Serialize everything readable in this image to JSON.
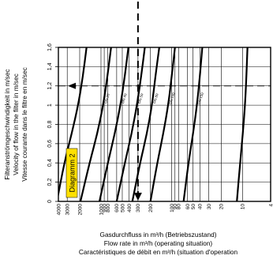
{
  "chart_data": {
    "type": "line",
    "title": "",
    "badge": "Diagramm 2",
    "ylabel_lines": [
      "Filteranströmgeschwindigkeit in m/sec",
      "Velocity of flow in the filter in m/sec",
      "Vitesse courante dans le filtre en m/sec"
    ],
    "xlabel_lines": [
      "Gasdurchfluss in m³/h (Betriebszustand)",
      "Flow rate in m³/h (operating situation)",
      "Caractéristiques de débit en m³/h (situation d'operation"
    ],
    "y_ticks": [
      "0",
      "0,2",
      "0,4",
      "0,6",
      "0,8",
      "1",
      "1,2",
      "1,4",
      "1,6"
    ],
    "ylim": [
      0,
      1.6
    ],
    "x_ticks": [
      "4000",
      "3000",
      "2000",
      "1000",
      "900",
      "800",
      "600",
      "500",
      "400",
      "300",
      "200",
      "100",
      "90",
      "80",
      "60",
      "50",
      "40",
      "30",
      "20",
      "10",
      "4"
    ],
    "x_scale": "log, reversed",
    "reference_velocity": 1.2,
    "reference_flow": "300",
    "curve_labels": [
      "",
      "DN 150",
      "DN 100",
      "DN 80",
      "DN 50",
      "DN 40",
      "DN 25",
      ""
    ],
    "series": [
      {
        "points": [
          [
            8.5,
            1.6
          ],
          [
            8.8,
            1.3
          ],
          [
            9.2,
            1.0
          ],
          [
            9.9,
            0.7
          ],
          [
            10.8,
            0.4
          ],
          [
            12.0,
            0.0
          ]
        ]
      },
      {
        "points": [
          [
            37,
            1.6
          ],
          [
            40,
            1.3
          ],
          [
            44,
            1.0
          ],
          [
            50,
            0.7
          ],
          [
            58,
            0.4
          ],
          [
            68,
            0.0
          ]
        ]
      },
      {
        "points": [
          [
            90,
            1.6
          ],
          [
            100,
            1.3
          ],
          [
            112,
            1.0
          ],
          [
            132,
            0.7
          ],
          [
            160,
            0.4
          ],
          [
            200,
            0.0
          ]
        ]
      },
      {
        "points": [
          [
            150,
            1.6
          ],
          [
            170,
            1.3
          ],
          [
            190,
            1.0
          ],
          [
            225,
            0.7
          ],
          [
            280,
            0.4
          ],
          [
            360,
            0.0
          ]
        ]
      },
      {
        "points": [
          [
            240,
            1.6
          ],
          [
            270,
            1.3
          ],
          [
            310,
            1.0
          ],
          [
            370,
            0.7
          ],
          [
            460,
            0.4
          ],
          [
            600,
            0.0
          ]
        ]
      },
      {
        "points": [
          [
            410,
            1.6
          ],
          [
            460,
            1.3
          ],
          [
            530,
            1.0
          ],
          [
            640,
            0.7
          ],
          [
            800,
            0.4
          ],
          [
            1050,
            0.0
          ]
        ]
      },
      {
        "points": [
          [
            720,
            1.6
          ],
          [
            810,
            1.3
          ],
          [
            930,
            1.0
          ],
          [
            1130,
            0.7
          ],
          [
            1450,
            0.4
          ],
          [
            1950,
            0.0
          ]
        ]
      },
      {
        "points": [
          [
            1600,
            1.6
          ],
          [
            1800,
            1.3
          ],
          [
            2100,
            1.0
          ],
          [
            2600,
            0.7
          ],
          [
            3300,
            0.4
          ],
          [
            4200,
            0.0
          ]
        ]
      }
    ]
  }
}
